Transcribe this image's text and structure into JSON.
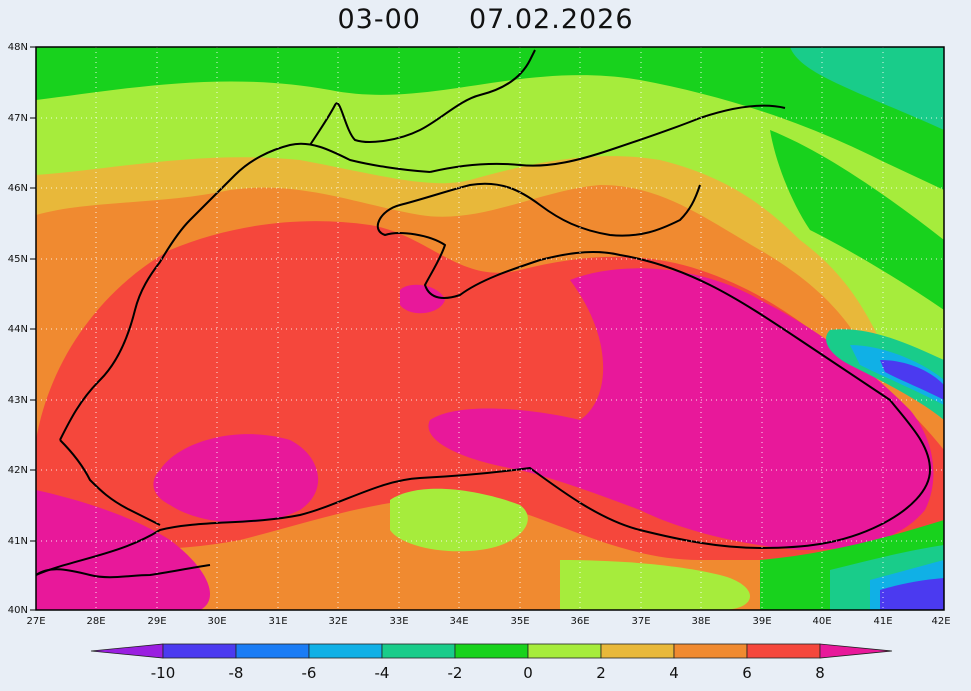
{
  "title": {
    "run": "03-00",
    "date": "07.02.2026"
  },
  "map": {
    "lat_labels": [
      "48N",
      "47N",
      "46N",
      "45N",
      "44N",
      "43N",
      "42N",
      "41N",
      "40N"
    ],
    "lon_labels": [
      "27E",
      "28E",
      "29E",
      "30E",
      "31E",
      "32E",
      "33E",
      "34E",
      "35E",
      "36E",
      "37E",
      "38E",
      "39E",
      "40E",
      "41E",
      "42E"
    ]
  },
  "colorbar": {
    "labels": [
      "-10",
      "-8",
      "-6",
      "-4",
      "-2",
      "0",
      "2",
      "4",
      "6",
      "8"
    ],
    "colors": [
      "#9a1fe0",
      "#4b3af0",
      "#1a7cf5",
      "#10b0e6",
      "#19cc8a",
      "#18d21d",
      "#a6ec3c",
      "#e8b83a",
      "#f08a30",
      "#f5473c",
      "#e8189a"
    ]
  }
}
